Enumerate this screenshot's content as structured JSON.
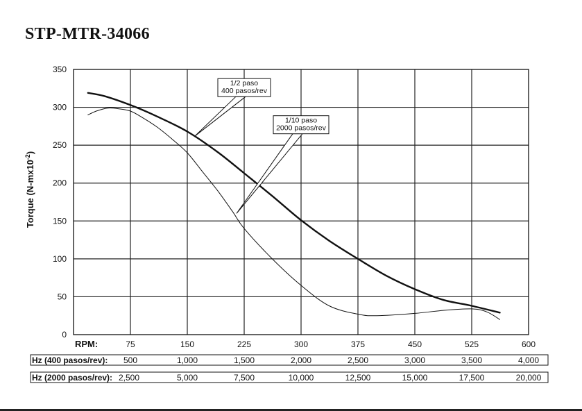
{
  "chart_data": {
    "type": "line",
    "title": "STP-MTR-34066",
    "ylabel": "Torque (N-mx10",
    "ylabel_sup": "-2",
    "ylabel_close": ")",
    "xlabel": "RPM:",
    "xlim": [
      0,
      600
    ],
    "ylim": [
      0,
      350
    ],
    "grid": true,
    "x_ticks": [
      75,
      150,
      225,
      300,
      375,
      450,
      525,
      600
    ],
    "y_ticks": [
      0,
      50,
      100,
      150,
      200,
      250,
      300,
      350
    ],
    "hz_rows": [
      {
        "label": "Hz (400 pasos/rev):",
        "values": [
          "500",
          "1,000",
          "1,500",
          "2,000",
          "2,500",
          "3,000",
          "3,500",
          "4,000"
        ]
      },
      {
        "label": "Hz (2000 pasos/rev):",
        "values": [
          "2,500",
          "5,000",
          "7,500",
          "10,000",
          "12,500",
          "15,000",
          "17,500",
          "20,000"
        ]
      }
    ],
    "series": [
      {
        "name_lines": [
          "1/2 paso",
          "400 pasos/rev"
        ],
        "color": "#111111",
        "width": 2.4,
        "x": [
          19,
          40,
          75,
          110,
          150,
          190,
          225,
          262,
          300,
          337,
          375,
          412,
          450,
          487,
          525,
          562
        ],
        "y": [
          319,
          315,
          303,
          288,
          268,
          241,
          213,
          183,
          151,
          124,
          100,
          78,
          60,
          46,
          38,
          29
        ],
        "annotation": {
          "tip": [
            160,
            262
          ],
          "box_center": [
            225,
            326
          ]
        }
      },
      {
        "name_lines": [
          "1/10 paso",
          "2000 pasos/rev"
        ],
        "color": "#111111",
        "width": 1.0,
        "x": [
          19,
          30,
          45,
          60,
          75,
          90,
          110,
          130,
          150,
          170,
          190,
          210,
          225,
          262,
          300,
          337,
          375,
          400,
          450,
          487,
          525,
          545,
          562
        ],
        "y": [
          290,
          295,
          299,
          298,
          295,
          287,
          274,
          258,
          240,
          215,
          190,
          162,
          140,
          100,
          65,
          38,
          27,
          25,
          28,
          32,
          34,
          30,
          20
        ],
        "annotation": {
          "tip": [
            215,
            160
          ],
          "box_center": [
            300,
            277
          ]
        }
      }
    ]
  }
}
